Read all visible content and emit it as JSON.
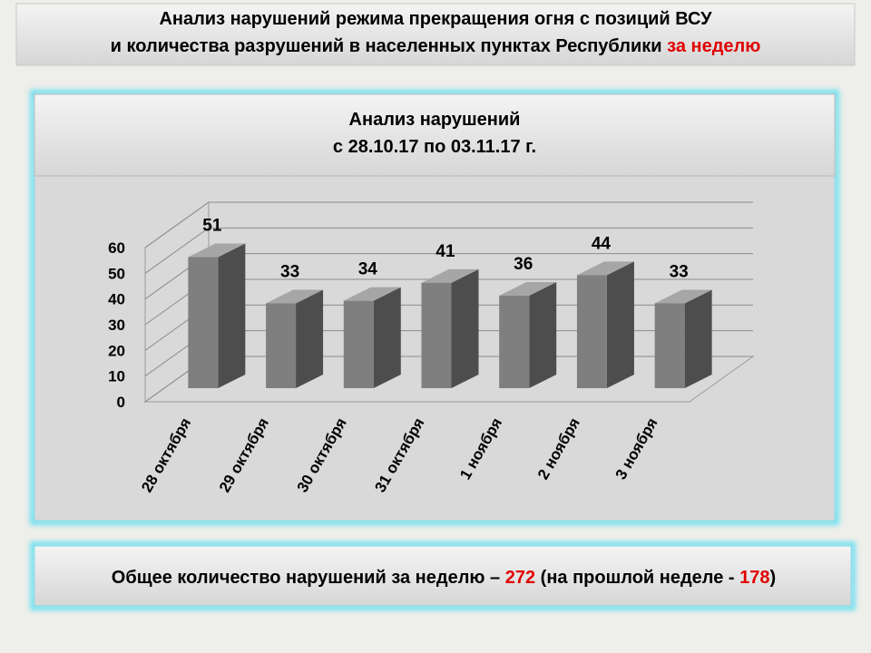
{
  "header": {
    "line1": "Анализ нарушений режима прекращения огня с позиций ВСУ",
    "line2": "и количества разрушений в населенных пунктах Республики",
    "line2_highlight": "за неделю"
  },
  "chart_data": {
    "type": "bar3d",
    "title": "Анализ нарушений",
    "subtitle": "с 28.10.17 по 03.11.17 г.",
    "categories": [
      "28 октября",
      "29 октября",
      "30 октября",
      "31 октября",
      "1 ноября",
      "2 ноября",
      "3 ноября"
    ],
    "values": [
      51,
      33,
      34,
      41,
      36,
      44,
      33
    ],
    "color": "#7f7f7f",
    "ylim": [
      0,
      60
    ],
    "yticks": [
      0,
      10,
      20,
      30,
      40,
      50,
      60
    ],
    "grid": true
  },
  "summary": {
    "prefix": "Общее количество нарушений за неделю –",
    "total": 272,
    "middle": "(на прошлой неделе -",
    "previous": 178,
    "suffix": ")"
  }
}
